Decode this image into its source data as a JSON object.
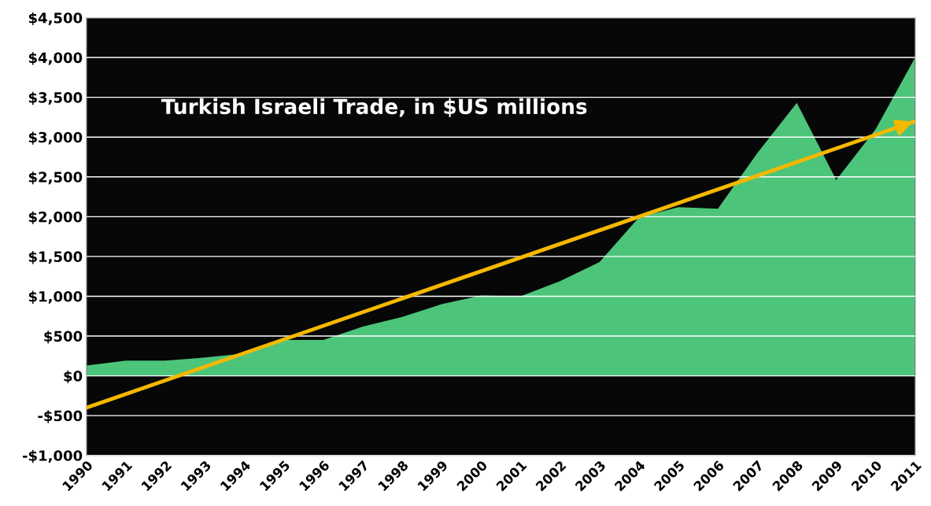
{
  "chart_data": {
    "type": "area",
    "title": "Turkish Israeli Trade, in $US millions",
    "x": [
      1990,
      1991,
      1992,
      1993,
      1994,
      1995,
      1996,
      1997,
      1998,
      1999,
      2000,
      2001,
      2002,
      2003,
      2004,
      2005,
      2006,
      2007,
      2008,
      2009,
      2010,
      2011
    ],
    "series": [
      {
        "color": "#4cc47a",
        "values": [
          130,
          190,
          190,
          230,
          280,
          450,
          450,
          620,
          740,
          900,
          1010,
          1000,
          1190,
          1430,
          1990,
          2120,
          2100,
          2800,
          3430,
          2460,
          3100,
          4000
        ]
      },
      {
        "type": "line",
        "color": "#f5b800",
        "x": [
          1990,
          2011
        ],
        "values": [
          -400,
          3200
        ]
      }
    ],
    "xlim": [
      1990,
      2011
    ],
    "xticks": [
      1990,
      1991,
      1992,
      1993,
      1994,
      1995,
      1996,
      1997,
      1998,
      1999,
      2000,
      2001,
      2002,
      2003,
      2004,
      2005,
      2006,
      2007,
      2008,
      2009,
      2010,
      2011
    ],
    "ylim": [
      -1000,
      4500
    ],
    "yticks": [
      {
        "value": -1000,
        "label": "-$1,000"
      },
      {
        "value": -500,
        "label": "-$500"
      },
      {
        "value": 0,
        "label": "$0"
      },
      {
        "value": 500,
        "label": "$500"
      },
      {
        "value": 1000,
        "label": "$1,000"
      },
      {
        "value": 1500,
        "label": "$1,500"
      },
      {
        "value": 2000,
        "label": "$2,000"
      },
      {
        "value": 2500,
        "label": "$2,500"
      },
      {
        "value": 3000,
        "label": "$3,000"
      },
      {
        "value": 3500,
        "label": "$3,500"
      },
      {
        "value": 4000,
        "label": "$4,000"
      },
      {
        "value": 4500,
        "label": "$4,500"
      }
    ],
    "grid": "y"
  }
}
